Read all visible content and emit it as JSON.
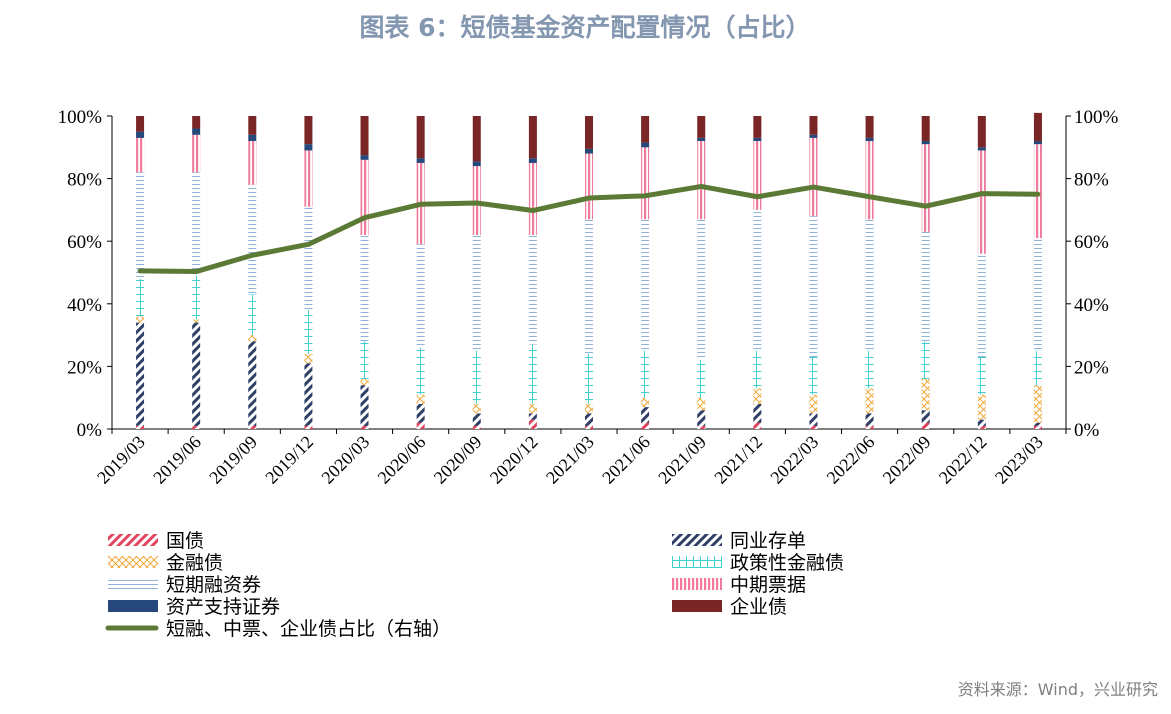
{
  "title": "图表 6：短债基金资产配置情况（占比）",
  "source": "资料来源：Wind，兴业研究",
  "colors": {
    "国债": "#e0445f",
    "同业存单": "#2f3f66",
    "金融债": "#f2a93b",
    "政策性金融债": "#3fd0d2",
    "短期融资券": "#8fb3d9",
    "中期票据": "#f07a9b",
    "资产支持证券": "#26487a",
    "企业债": "#7b2626",
    "line": "#5b7a35",
    "title": "#8497b0"
  },
  "chart_data": {
    "type": "bar",
    "stacked": true,
    "categories": [
      "2019/03",
      "2019/06",
      "2019/09",
      "2019/12",
      "2020/03",
      "2020/06",
      "2020/09",
      "2020/12",
      "2021/03",
      "2021/06",
      "2021/09",
      "2021/12",
      "2022/03",
      "2022/06",
      "2022/09",
      "2022/12",
      "2023/03"
    ],
    "ylim": [
      0,
      100
    ],
    "y_ticks": [
      "0%",
      "20%",
      "40%",
      "60%",
      "80%",
      "100%"
    ],
    "y2_ticks": [
      "0%",
      "20%",
      "40%",
      "60%",
      "80%",
      "100%"
    ],
    "series": [
      {
        "name": "国债",
        "values": [
          1,
          1,
          1,
          1,
          1,
          2,
          1,
          3,
          1,
          2,
          1,
          2,
          1,
          1,
          2,
          1,
          1
        ]
      },
      {
        "name": "同业存单",
        "values": [
          33,
          33,
          27,
          20,
          13,
          6,
          4,
          2,
          4,
          5,
          5,
          6,
          4,
          4,
          4,
          2,
          1
        ]
      },
      {
        "name": "金融债",
        "values": [
          2,
          1,
          2,
          3,
          2,
          3,
          3,
          3,
          3,
          3,
          4,
          5,
          6,
          8,
          10,
          8,
          12
        ]
      },
      {
        "name": "政策性金融债",
        "values": [
          12,
          14,
          13,
          14,
          12,
          15,
          17,
          19,
          16,
          15,
          12,
          12,
          12,
          12,
          12,
          12,
          11
        ]
      },
      {
        "name": "短期融资券",
        "values": [
          34,
          33,
          35,
          33,
          34,
          33,
          37,
          35,
          43,
          42,
          45,
          45,
          45,
          42,
          35,
          33,
          36
        ]
      },
      {
        "name": "中期票据",
        "values": [
          11,
          12,
          14,
          18,
          24,
          26,
          22,
          23,
          21,
          23,
          25,
          22,
          25,
          25,
          28,
          33,
          30
        ]
      },
      {
        "name": "资产支持证券",
        "values": [
          2,
          2,
          2,
          2,
          1.5,
          1.5,
          1.5,
          1.5,
          1.5,
          1.5,
          1,
          1,
          1,
          1,
          1,
          1,
          1
        ]
      },
      {
        "name": "企业债",
        "values": [
          5,
          4,
          6,
          9,
          12.5,
          13.5,
          14.5,
          13.5,
          10.5,
          8.5,
          7,
          7,
          6,
          7,
          8,
          10,
          9
        ]
      }
    ],
    "line_series": {
      "name": "短融、中票、企业债占比（右轴）",
      "axis": "right",
      "values": [
        50.5,
        50.3,
        55.5,
        59,
        67.5,
        71.8,
        72.2,
        69.8,
        73.8,
        74.5,
        77.5,
        74.2,
        77.3,
        74.2,
        71.2,
        75.2,
        75
      ]
    },
    "legend": {
      "placement": "bottom",
      "items": [
        {
          "label": "国债",
          "key": "国债",
          "kind": "bar"
        },
        {
          "label": "同业存单",
          "key": "同业存单",
          "kind": "bar"
        },
        {
          "label": "金融债",
          "key": "金融债",
          "kind": "bar"
        },
        {
          "label": "政策性金融债",
          "key": "政策性金融债",
          "kind": "bar"
        },
        {
          "label": "短期融资券",
          "key": "短期融资券",
          "kind": "bar"
        },
        {
          "label": "中期票据",
          "key": "中期票据",
          "kind": "bar"
        },
        {
          "label": "资产支持证券",
          "key": "资产支持证券",
          "kind": "bar"
        },
        {
          "label": "企业债",
          "key": "企业债",
          "kind": "bar"
        },
        {
          "label": "短融、中票、企业债占比（右轴）",
          "key": "line",
          "kind": "line"
        }
      ]
    },
    "grid": false
  }
}
